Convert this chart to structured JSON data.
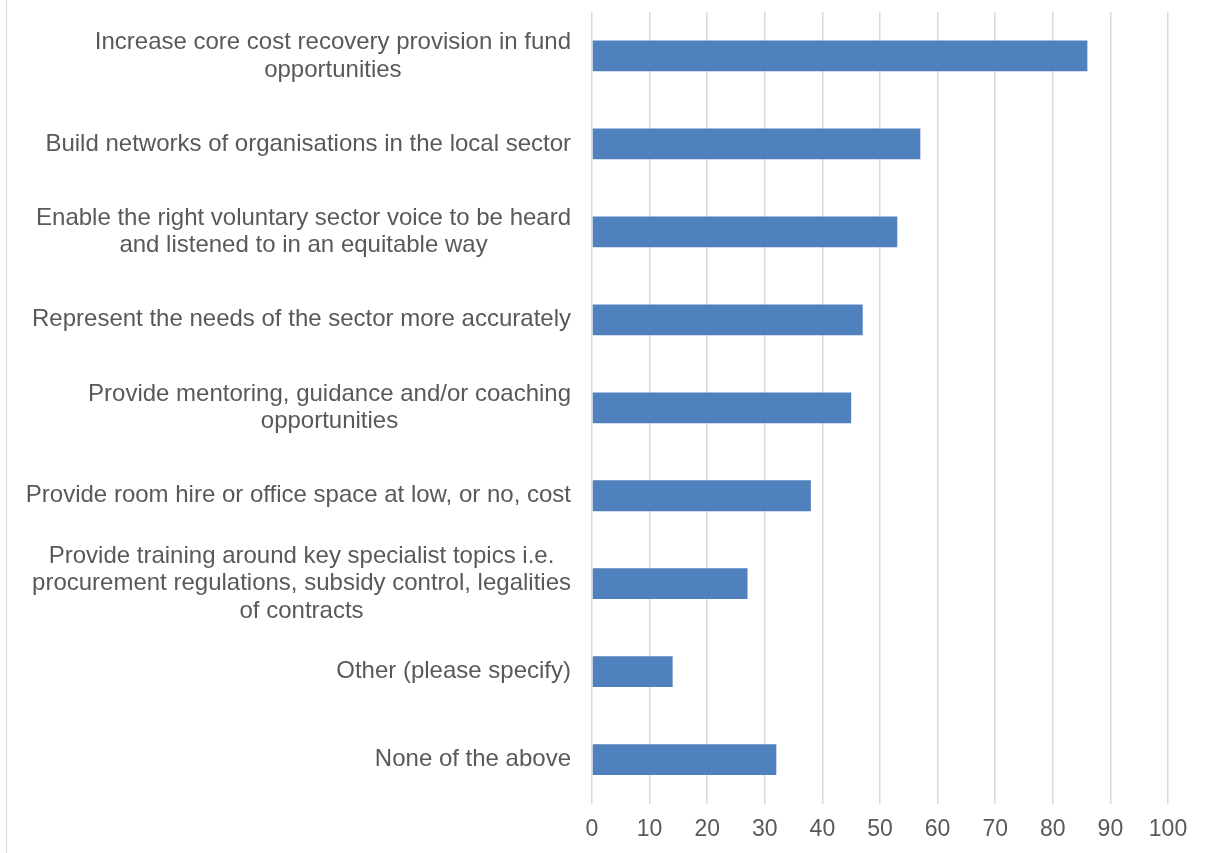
{
  "chart_data": {
    "type": "bar",
    "orientation": "horizontal",
    "categories": [
      "Increase core cost recovery provision in fund opportunities",
      "Build networks of organisations in the local sector",
      "Enable the right voluntary sector voice to be heard and listened to in an equitable way",
      "Represent the needs of the sector more accurately",
      "Provide mentoring, guidance and/or coaching opportunities",
      "Provide room hire or office space at low, or no, cost",
      "Provide training around key specialist topics i.e. procurement regulations, subsidy control, legalities of contracts",
      "Other (please specify)",
      "None of the above"
    ],
    "values": [
      86,
      57,
      53,
      47,
      45,
      38,
      27,
      14,
      32
    ],
    "color": "#4f81bd",
    "xlim": [
      0,
      100
    ],
    "xticks": [
      0,
      10,
      20,
      30,
      40,
      50,
      60,
      70,
      80,
      90,
      100
    ],
    "grid": "x",
    "legend": false
  }
}
